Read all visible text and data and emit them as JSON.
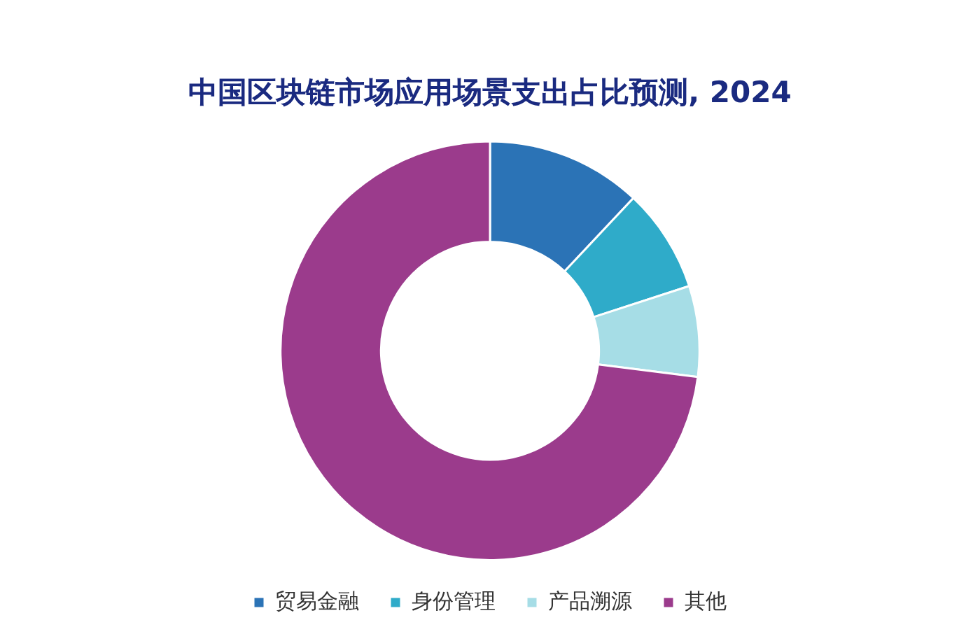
{
  "chart_data": {
    "type": "donut",
    "title": "中国区块链市场应用场景支出占比预测, 2024",
    "categories": [
      "贸易金融",
      "身份管理",
      "产品溯源",
      "其他"
    ],
    "values": [
      12,
      8,
      7,
      73
    ],
    "colors": [
      "#2b73b6",
      "#2fabc9",
      "#a6dde6",
      "#9b3b8c"
    ],
    "legend": "bottom"
  }
}
